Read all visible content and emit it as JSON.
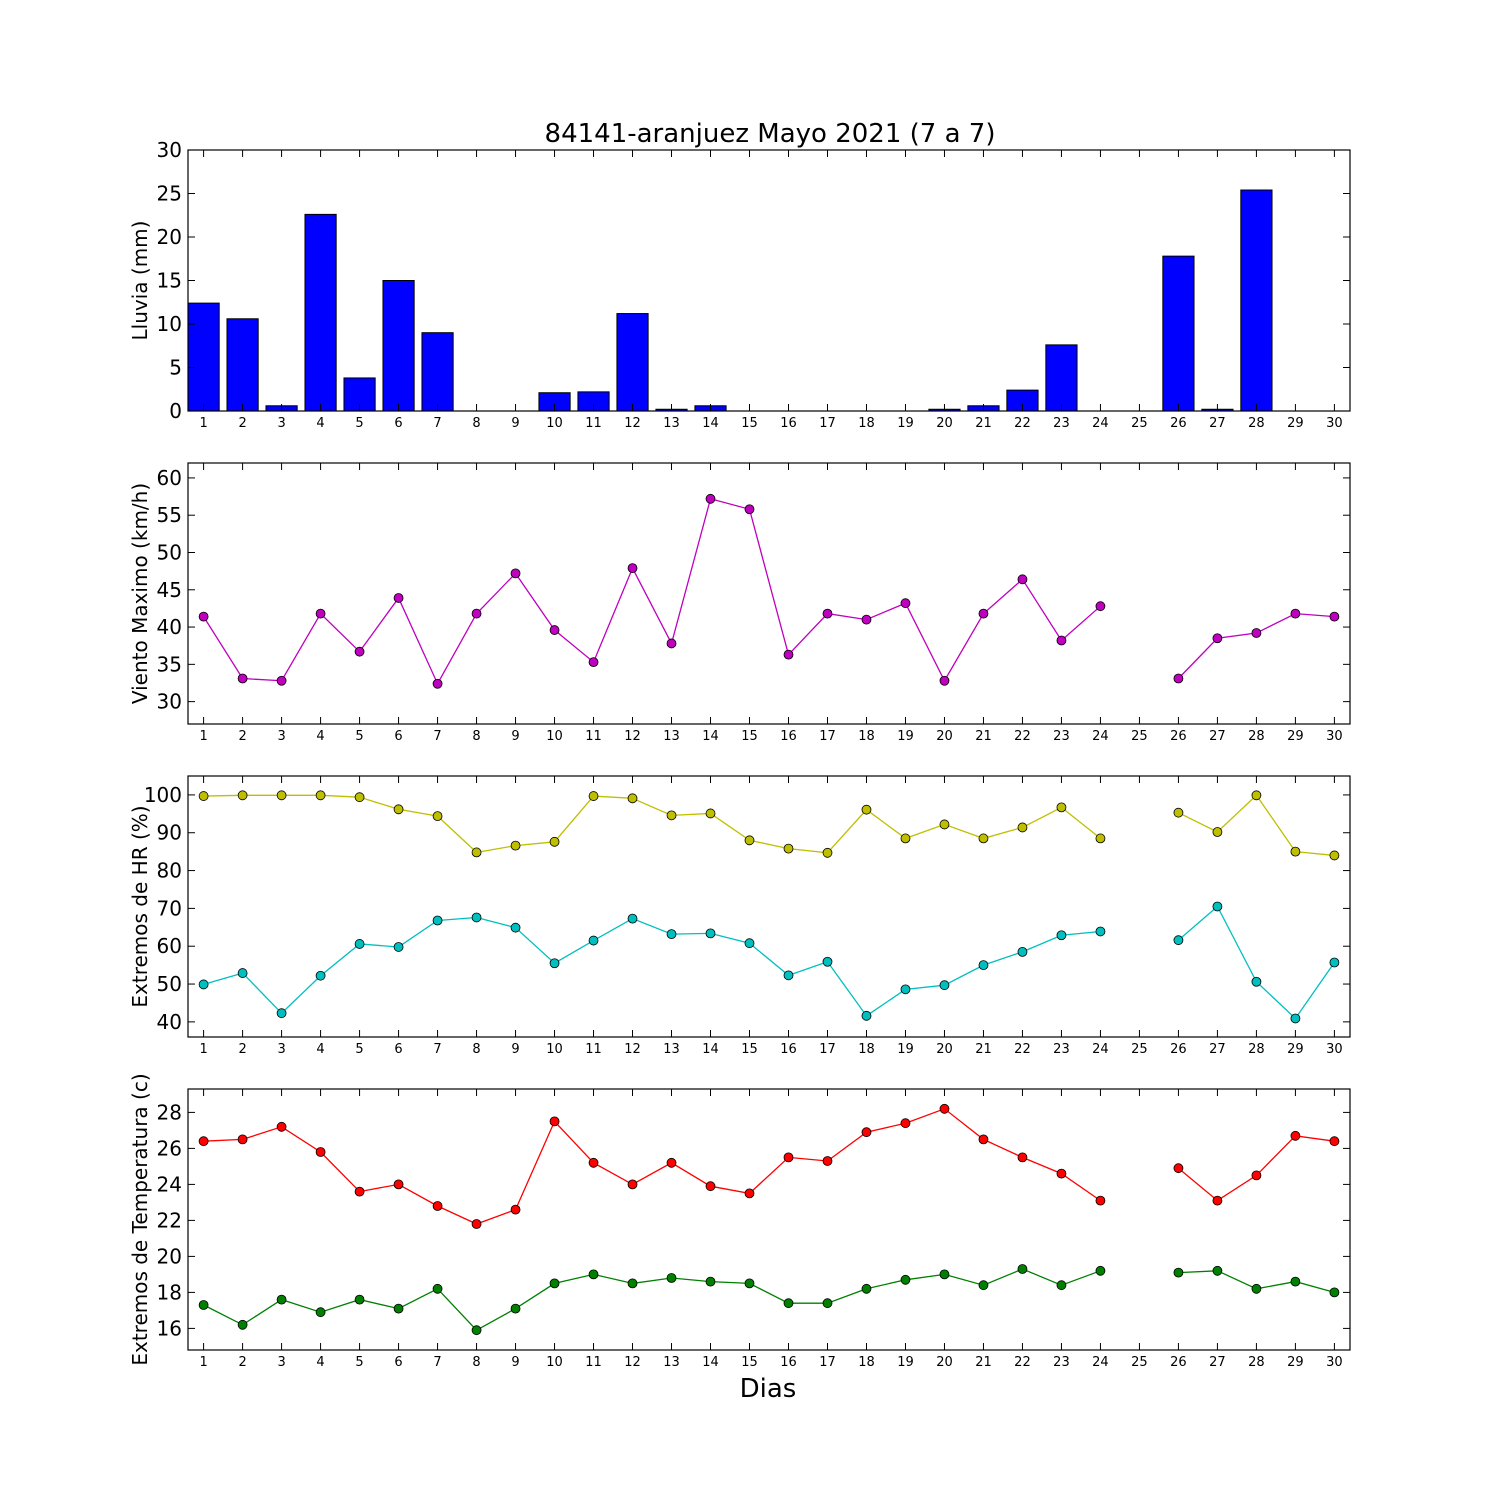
{
  "figure": {
    "title": "84141-aranjuez Mayo 2021  (7 a 7)",
    "xlabel": "Dias"
  },
  "chart_data": [
    {
      "type": "bar",
      "ylabel": "Lluvia (mm)",
      "ylim": [
        0,
        30
      ],
      "yticks": [
        0,
        5,
        10,
        15,
        20,
        25,
        30
      ],
      "categories": [
        1,
        2,
        3,
        4,
        5,
        6,
        7,
        8,
        9,
        10,
        11,
        12,
        13,
        14,
        15,
        16,
        17,
        18,
        19,
        20,
        21,
        22,
        23,
        24,
        25,
        26,
        27,
        28,
        29,
        30
      ],
      "series": [
        {
          "color": "#0000ff",
          "values": [
            12.4,
            10.6,
            0.6,
            22.6,
            3.8,
            15.0,
            9.0,
            0,
            0,
            2.1,
            2.2,
            11.2,
            0.2,
            0.6,
            0,
            0,
            0,
            0,
            0,
            0.2,
            0.6,
            2.4,
            7.6,
            0,
            0,
            17.8,
            0.2,
            25.4,
            0,
            0
          ]
        }
      ],
      "grid": false
    },
    {
      "type": "line",
      "ylabel": "Viento Maximo (km/h)",
      "ylim": [
        27,
        62
      ],
      "yticks": [
        30,
        35,
        40,
        45,
        50,
        55,
        60
      ],
      "categories": [
        1,
        2,
        3,
        4,
        5,
        6,
        7,
        8,
        9,
        10,
        11,
        12,
        13,
        14,
        15,
        16,
        17,
        18,
        19,
        20,
        21,
        22,
        23,
        24,
        25,
        26,
        27,
        28,
        29,
        30
      ],
      "series": [
        {
          "color": "#bf00bf",
          "values": [
            41.4,
            33.1,
            32.8,
            41.8,
            36.7,
            43.9,
            32.4,
            41.8,
            47.2,
            39.6,
            35.3,
            47.9,
            37.8,
            57.2,
            55.8,
            36.3,
            41.8,
            41.0,
            43.2,
            32.8,
            41.8,
            46.4,
            38.2,
            42.8,
            null,
            33.1,
            38.5,
            39.2,
            41.8,
            41.4
          ]
        }
      ],
      "grid": false
    },
    {
      "type": "line",
      "ylabel": "Extremos de HR (%)",
      "ylim": [
        36,
        105
      ],
      "yticks": [
        40,
        50,
        60,
        70,
        80,
        90,
        100
      ],
      "categories": [
        1,
        2,
        3,
        4,
        5,
        6,
        7,
        8,
        9,
        10,
        11,
        12,
        13,
        14,
        15,
        16,
        17,
        18,
        19,
        20,
        21,
        22,
        23,
        24,
        25,
        26,
        27,
        28,
        29,
        30
      ],
      "series": [
        {
          "color": "#bfbf00",
          "values": [
            99.7,
            99.9,
            99.9,
            99.9,
            99.4,
            96.2,
            94.4,
            84.8,
            86.6,
            87.6,
            99.7,
            99.1,
            94.6,
            95.1,
            88.0,
            85.8,
            84.7,
            96.1,
            88.5,
            92.2,
            88.5,
            91.4,
            96.7,
            88.5,
            null,
            95.3,
            90.2,
            99.9,
            85.0,
            84.0
          ]
        },
        {
          "color": "#00bfbf",
          "values": [
            49.9,
            52.9,
            42.3,
            52.2,
            60.6,
            59.8,
            66.8,
            67.6,
            64.9,
            55.5,
            61.5,
            67.3,
            63.2,
            63.4,
            60.8,
            52.3,
            55.9,
            41.6,
            48.6,
            49.7,
            55.0,
            58.5,
            62.9,
            63.9,
            null,
            61.6,
            70.5,
            50.6,
            40.9,
            55.7
          ]
        }
      ],
      "grid": false
    },
    {
      "type": "line",
      "ylabel": "Extremos de Temperatura (c)",
      "ylim": [
        14.8,
        29.3
      ],
      "yticks": [
        16,
        18,
        20,
        22,
        24,
        26,
        28
      ],
      "categories": [
        1,
        2,
        3,
        4,
        5,
        6,
        7,
        8,
        9,
        10,
        11,
        12,
        13,
        14,
        15,
        16,
        17,
        18,
        19,
        20,
        21,
        22,
        23,
        24,
        25,
        26,
        27,
        28,
        29,
        30
      ],
      "series": [
        {
          "color": "#ff0000",
          "values": [
            26.4,
            26.5,
            27.2,
            25.8,
            23.6,
            24.0,
            22.8,
            21.8,
            22.6,
            27.5,
            25.2,
            24.0,
            25.2,
            23.9,
            23.5,
            25.5,
            25.3,
            26.9,
            27.4,
            28.2,
            26.5,
            25.5,
            24.6,
            23.1,
            null,
            24.9,
            23.1,
            24.5,
            26.7,
            26.4
          ]
        },
        {
          "color": "#008000",
          "values": [
            17.3,
            16.2,
            17.6,
            16.9,
            17.6,
            17.1,
            18.2,
            15.9,
            17.1,
            18.5,
            19.0,
            18.5,
            18.8,
            18.6,
            18.5,
            17.4,
            17.4,
            18.2,
            18.7,
            19.0,
            18.4,
            19.3,
            18.4,
            19.2,
            null,
            19.1,
            19.2,
            18.2,
            18.6,
            18.0
          ]
        }
      ],
      "grid": false
    }
  ]
}
